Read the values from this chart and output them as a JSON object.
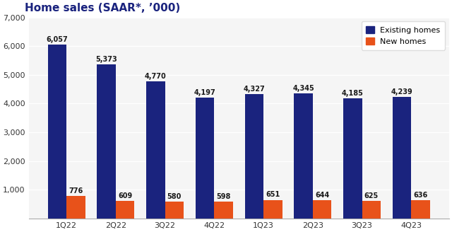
{
  "title": "Home sales (SAAR*, ’000)",
  "categories": [
    "1Q22",
    "2Q22",
    "3Q22",
    "4Q22",
    "1Q23",
    "2Q23",
    "3Q23",
    "4Q23"
  ],
  "existing_homes": [
    6057,
    5373,
    4770,
    4197,
    4327,
    4345,
    4185,
    4239
  ],
  "new_homes": [
    776,
    609,
    580,
    598,
    651,
    644,
    625,
    636
  ],
  "existing_color": "#1a237e",
  "new_color": "#e8521a",
  "background_color": "#ffffff",
  "plot_bg_color": "#f5f5f5",
  "ylim": [
    0,
    7000
  ],
  "yticks": [
    0,
    1000,
    2000,
    3000,
    4000,
    5000,
    6000,
    7000
  ],
  "legend_existing": "Existing homes",
  "legend_new": "New homes",
  "bar_width": 0.38,
  "title_fontsize": 11,
  "tick_fontsize": 8,
  "label_fontsize": 7
}
